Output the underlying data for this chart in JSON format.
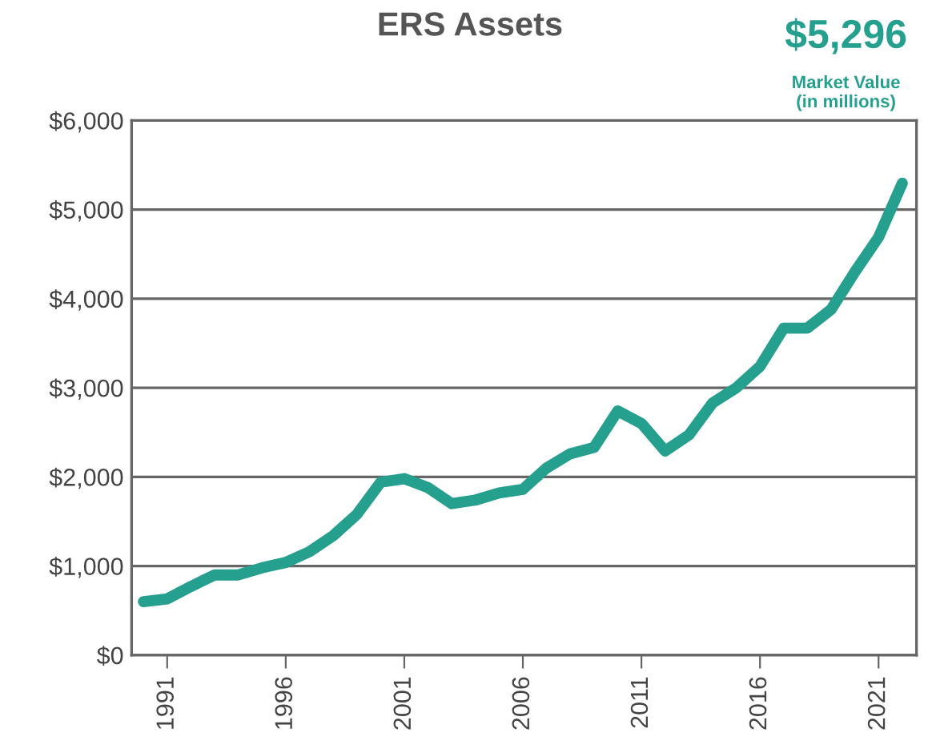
{
  "chart_data": {
    "type": "line",
    "title": "ERS Assets",
    "x": [
      1990,
      1991,
      1992,
      1993,
      1994,
      1995,
      1996,
      1997,
      1998,
      1999,
      2000,
      2001,
      2002,
      2003,
      2004,
      2005,
      2006,
      2007,
      2008,
      2009,
      2010,
      2011,
      2012,
      2013,
      2014,
      2015,
      2016,
      2017,
      2018,
      2019,
      2020,
      2021,
      2022
    ],
    "series": [
      {
        "color": "#26a08e",
        "values": [
          600,
          630,
          770,
          900,
          900,
          980,
          1040,
          1160,
          1340,
          1580,
          1940,
          1980,
          1880,
          1700,
          1740,
          1820,
          1860,
          2100,
          2260,
          2330,
          2740,
          2600,
          2290,
          2470,
          2830,
          3000,
          3240,
          3670,
          3670,
          3880,
          4300,
          4690,
          5296
        ]
      }
    ],
    "annotations": [
      "$5,296",
      "Market Value\n(in millions)"
    ],
    "xlim": [
      1989.5,
      2022.6
    ],
    "xticks": [
      1991,
      1996,
      2001,
      2006,
      2011,
      2016,
      2021
    ],
    "ylim": [
      0,
      6000
    ],
    "yticks": [
      {
        "value": 0,
        "label": "$0"
      },
      {
        "value": 1000,
        "label": "$1,000"
      },
      {
        "value": 2000,
        "label": "$2,000"
      },
      {
        "value": 3000,
        "label": "$3,000"
      },
      {
        "value": 4000,
        "label": "$4,000"
      },
      {
        "value": 5000,
        "label": "$5,000"
      },
      {
        "value": 6000,
        "label": "$6,000"
      }
    ],
    "grid": "y",
    "legend": false,
    "marker": "none",
    "line_style": "solid"
  }
}
